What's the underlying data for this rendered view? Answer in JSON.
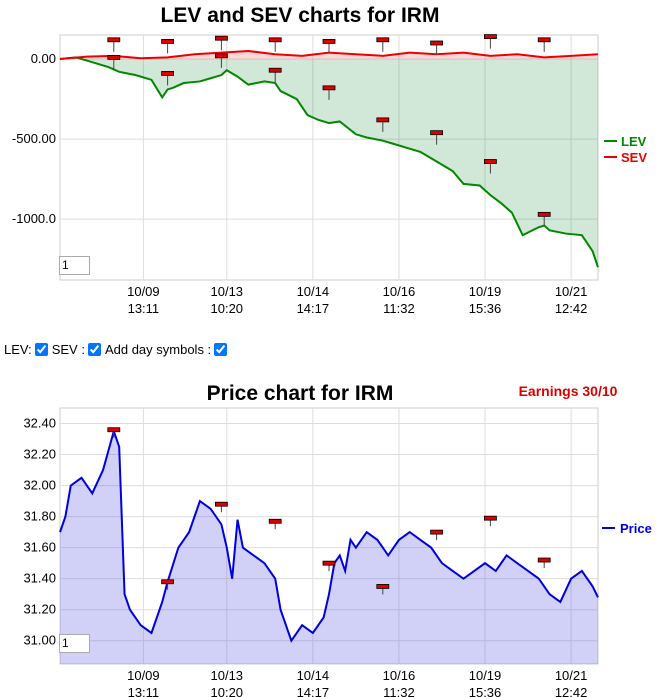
{
  "lev_chart": {
    "title": "LEV and SEV charts for IRM",
    "zoom_value": "1",
    "legend": [
      {
        "label": "LEV",
        "color": "#008800"
      },
      {
        "label": "SEV",
        "color": "#ee0000"
      }
    ],
    "y_ticks": [
      "0.00",
      "-500.00",
      "-1000.0"
    ],
    "x_ticks": [
      {
        "date": "10/09",
        "time": "13:11"
      },
      {
        "date": "10/13",
        "time": "10:20"
      },
      {
        "date": "10/14",
        "time": "14:17"
      },
      {
        "date": "10/16",
        "time": "11:32"
      },
      {
        "date": "10/19",
        "time": "15:36"
      },
      {
        "date": "10/21",
        "time": "12:42"
      }
    ]
  },
  "controls": {
    "lev_label": "LEV:",
    "sev_label": "SEV :",
    "day_symbols_label": "Add day symbols :"
  },
  "price_chart": {
    "title": "Price chart for IRM",
    "earnings": "Earnings 30/10",
    "zoom_value": "1",
    "legend": [
      {
        "label": "Price",
        "color": "#0000dd"
      }
    ],
    "y_ticks": [
      "32.40",
      "32.20",
      "32.00",
      "31.80",
      "31.60",
      "31.40",
      "31.20",
      "31.00"
    ],
    "x_ticks": [
      {
        "date": "10/09",
        "time": "13:11"
      },
      {
        "date": "10/13",
        "time": "10:20"
      },
      {
        "date": "10/14",
        "time": "14:17"
      },
      {
        "date": "10/16",
        "time": "11:32"
      },
      {
        "date": "10/19",
        "time": "15:36"
      },
      {
        "date": "10/21",
        "time": "12:42"
      }
    ]
  },
  "chart_data": [
    {
      "type": "area",
      "title": "LEV and SEV charts for IRM",
      "ylim": [
        -1380,
        150
      ],
      "legend_position": "right",
      "grid": true,
      "x_labels": [
        "10/09 13:11",
        "10/13 10:20",
        "10/14 14:17",
        "10/16 11:32",
        "10/19 15:36",
        "10/21 12:42"
      ],
      "series": [
        {
          "name": "LEV",
          "color": "#008800",
          "x": [
            0,
            0.03,
            0.06,
            0.09,
            0.11,
            0.14,
            0.17,
            0.19,
            0.2,
            0.21,
            0.23,
            0.26,
            0.28,
            0.3,
            0.31,
            0.33,
            0.35,
            0.38,
            0.4,
            0.41,
            0.44,
            0.46,
            0.48,
            0.5,
            0.52,
            0.55,
            0.57,
            0.6,
            0.62,
            0.65,
            0.67,
            0.7,
            0.72,
            0.73,
            0.75,
            0.78,
            0.8,
            0.82,
            0.84,
            0.86,
            0.89,
            0.9,
            0.91,
            0.94,
            0.97,
            0.99,
            1.0
          ],
          "values": [
            0,
            10,
            -20,
            -50,
            -80,
            -100,
            -130,
            -240,
            -190,
            -180,
            -150,
            -140,
            -120,
            -100,
            -70,
            -110,
            -160,
            -140,
            -150,
            -200,
            -250,
            -350,
            -380,
            -400,
            -390,
            -470,
            -490,
            -510,
            -530,
            -560,
            -580,
            -640,
            -680,
            -700,
            -780,
            -790,
            -850,
            -900,
            -960,
            -1100,
            -1050,
            -1040,
            -1070,
            -1090,
            -1100,
            -1200,
            -1300
          ]
        },
        {
          "name": "SEV",
          "color": "#ee0000",
          "x": [
            0,
            0.05,
            0.1,
            0.15,
            0.2,
            0.25,
            0.3,
            0.35,
            0.4,
            0.45,
            0.5,
            0.55,
            0.6,
            0.65,
            0.7,
            0.75,
            0.8,
            0.85,
            0.9,
            0.95,
            1.0
          ],
          "values": [
            0,
            15,
            20,
            5,
            10,
            30,
            40,
            50,
            30,
            20,
            40,
            30,
            20,
            40,
            30,
            40,
            20,
            30,
            10,
            20,
            30
          ]
        }
      ]
    },
    {
      "type": "area",
      "title": "Price chart for IRM",
      "ylim": [
        30.85,
        32.5
      ],
      "legend_position": "right",
      "grid": true,
      "x_labels": [
        "10/09 13:11",
        "10/13 10:20",
        "10/14 14:17",
        "10/16 11:32",
        "10/19 15:36",
        "10/21 12:42"
      ],
      "series": [
        {
          "name": "Price",
          "color": "#0000dd",
          "x": [
            0,
            0.01,
            0.02,
            0.04,
            0.06,
            0.08,
            0.1,
            0.11,
            0.12,
            0.13,
            0.15,
            0.17,
            0.19,
            0.2,
            0.22,
            0.24,
            0.26,
            0.28,
            0.3,
            0.31,
            0.32,
            0.33,
            0.34,
            0.36,
            0.38,
            0.4,
            0.41,
            0.43,
            0.45,
            0.47,
            0.49,
            0.5,
            0.51,
            0.52,
            0.53,
            0.54,
            0.55,
            0.57,
            0.59,
            0.61,
            0.63,
            0.65,
            0.67,
            0.69,
            0.71,
            0.73,
            0.75,
            0.77,
            0.79,
            0.81,
            0.83,
            0.85,
            0.87,
            0.89,
            0.91,
            0.93,
            0.95,
            0.97,
            0.99,
            1.0
          ],
          "values": [
            31.7,
            31.8,
            32.0,
            32.05,
            31.95,
            32.1,
            32.35,
            32.25,
            31.3,
            31.2,
            31.1,
            31.05,
            31.25,
            31.38,
            31.6,
            31.7,
            31.9,
            31.85,
            31.75,
            31.6,
            31.4,
            31.78,
            31.6,
            31.55,
            31.5,
            31.4,
            31.2,
            31.0,
            31.1,
            31.05,
            31.15,
            31.3,
            31.5,
            31.55,
            31.45,
            31.65,
            31.6,
            31.7,
            31.65,
            31.55,
            31.65,
            31.7,
            31.65,
            31.6,
            31.5,
            31.45,
            31.4,
            31.45,
            31.5,
            31.45,
            31.55,
            31.5,
            31.45,
            31.4,
            31.3,
            31.25,
            31.4,
            31.45,
            31.35,
            31.28
          ]
        }
      ]
    }
  ]
}
